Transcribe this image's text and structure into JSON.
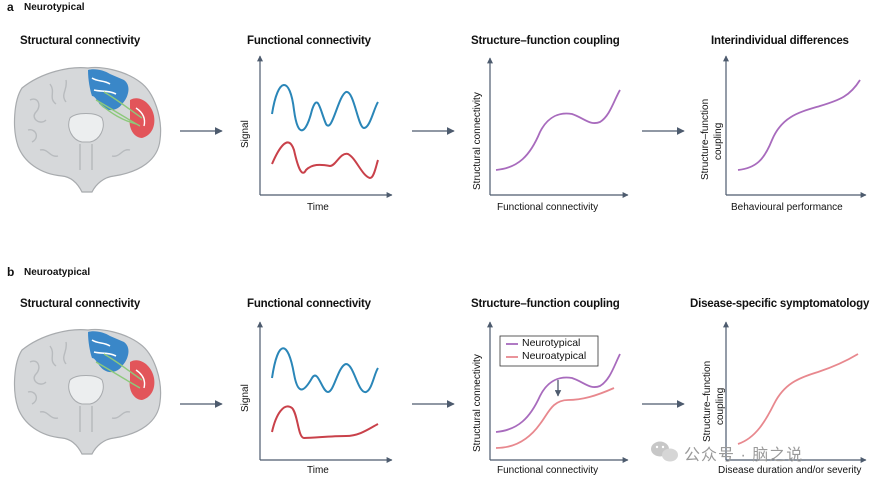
{
  "panel_a": {
    "letter": "a",
    "title": "Neurotypical",
    "stages": {
      "structural": "Structural connectivity",
      "functional": "Functional connectivity",
      "coupling": "Structure–function coupling",
      "differences": "Interindividual differences"
    },
    "functional_plot": {
      "ylabel": "Signal",
      "xlabel": "Time"
    },
    "coupling_plot": {
      "ylabel": "Structural connectivity",
      "xlabel": "Functional connectivity"
    },
    "differences_plot": {
      "ylabel_line1": "Structure–function",
      "ylabel_line2": "coupling",
      "xlabel": "Behavioural performance"
    }
  },
  "panel_b": {
    "letter": "b",
    "title": "Neuroatypical",
    "stages": {
      "structural": "Structural connectivity",
      "functional": "Functional connectivity",
      "coupling": "Structure–function coupling",
      "symptomatology": "Disease-specific symptomatology"
    },
    "functional_plot": {
      "ylabel": "Signal",
      "xlabel": "Time"
    },
    "coupling_plot": {
      "ylabel": "Structural connectivity",
      "xlabel": "Functional connectivity",
      "legend": [
        {
          "label": "Neurotypical",
          "color": "#a86bbd"
        },
        {
          "label": "Neuroatypical",
          "color": "#e8888e"
        }
      ]
    },
    "symptom_plot": {
      "ylabel_line1": "Structure–function",
      "ylabel_line2": "coupling",
      "xlabel": "Disease duration and/or severity"
    }
  },
  "colors": {
    "blue_signal": "#2a86b8",
    "red_signal": "#c9414a",
    "purple_curve": "#a86bbd",
    "pink_curve": "#e8888e",
    "arrow": "#4d5b6e",
    "brain_fill": "#d6d8da",
    "brain_region_blue": "#3a87c8",
    "brain_region_red": "#e2555a",
    "tract_green": "#8dc97b"
  },
  "watermark": "公众号 · 脑之说"
}
